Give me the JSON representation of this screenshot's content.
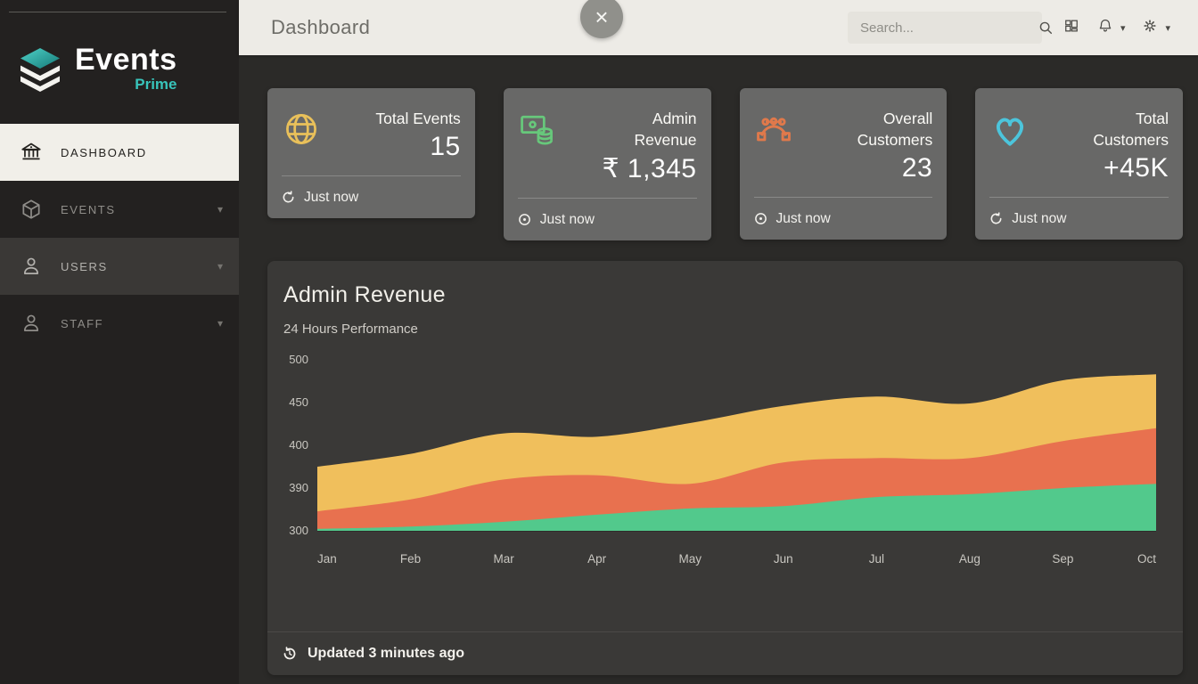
{
  "sidebar": {
    "logo": {
      "name": "Events",
      "sub": "Prime",
      "accent_color": "#38c4bb"
    },
    "items": [
      {
        "label": "DASHBOARD",
        "icon": "bank-icon",
        "active": true,
        "has_caret": false
      },
      {
        "label": "EVENTS",
        "icon": "cube-icon",
        "active": false,
        "has_caret": true
      },
      {
        "label": "USERS",
        "icon": "user-icon",
        "active": false,
        "has_caret": true
      },
      {
        "label": "STAFF",
        "icon": "user-icon",
        "active": false,
        "has_caret": true
      }
    ]
  },
  "topbar": {
    "title": "Dashboard",
    "close_label": "×",
    "search_placeholder": "Search...",
    "caret": "▾"
  },
  "stats": [
    {
      "title": "Total Events",
      "value": "15",
      "icon": "globe-icon",
      "icon_color": "#e9c05a",
      "footer": "Just now",
      "footer_icon": "refresh-icon"
    },
    {
      "title": "Admin Revenue",
      "value": "₹ 1,345",
      "icon": "money-icon",
      "icon_color": "#67c87b",
      "footer": "Just now",
      "footer_icon": "clock-icon"
    },
    {
      "title": "Overall Customers",
      "value": "23",
      "icon": "bezier-icon",
      "icon_color": "#e0794b",
      "footer": "Just now",
      "footer_icon": "clock-icon"
    },
    {
      "title": "Total Customers",
      "value": "+45K",
      "icon": "heart-icon",
      "icon_color": "#4cc5dc",
      "footer": "Just now",
      "footer_icon": "refresh-icon"
    }
  ],
  "chart_card": {
    "title": "Admin Revenue",
    "subtitle": "24 Hours Performance",
    "footer": "Updated 3 minutes ago"
  },
  "chart_data": {
    "type": "area",
    "stacked": true,
    "title": "Admin Revenue",
    "subtitle": "24 Hours Performance",
    "x": [
      "Jan",
      "Feb",
      "Mar",
      "Apr",
      "May",
      "Jun",
      "Jul",
      "Aug",
      "Sep",
      "Oct"
    ],
    "y_ticks": [
      300,
      390,
      400,
      450,
      500
    ],
    "grid": false,
    "legend": false,
    "note": "series values are cumulative stacked boundaries read against the y axis",
    "series": [
      {
        "name": "bottom",
        "color": "#52c98c",
        "boundary": [
          304,
          309,
          319,
          334,
          347,
          352,
          371,
          377,
          390,
          391
        ]
      },
      {
        "name": "middle",
        "color": "#e8714f",
        "boundary": [
          341,
          366,
          392,
          393,
          391,
          396,
          397,
          397,
          405,
          420
        ]
      },
      {
        "name": "top",
        "color": "#f0bf5c",
        "boundary": [
          395,
          398,
          414,
          410,
          426,
          446,
          457,
          449,
          476,
          483
        ]
      }
    ],
    "axis_text_color": "#c9c7c1"
  }
}
